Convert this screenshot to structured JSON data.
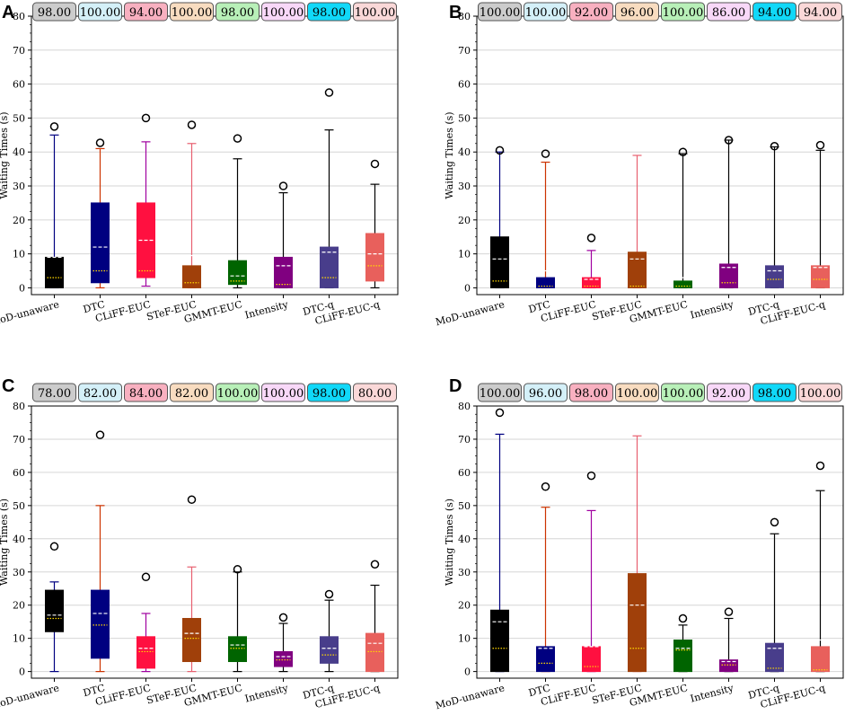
{
  "figure": {
    "panel_labels": [
      "A",
      "B",
      "C",
      "D"
    ],
    "y_axis_label": "Waiting Times (s)",
    "method_labels": [
      "MoD-unaware",
      "DTC",
      "CLiFF-EUC",
      "STeF-EUC",
      "GMMT-EUC",
      "Intensity",
      "DTC-q",
      "CLiFF-EUC-q"
    ],
    "method_colors": [
      "#000000",
      "#000080",
      "#ff1040",
      "#a0400a",
      "#006400",
      "#800080",
      "#483d8b",
      "#e8605c"
    ],
    "whisker_colors": [
      "#000080",
      "#cc3300",
      "#a000a0",
      "#e86070",
      "#000000",
      "#000000",
      "#000000",
      "#000000"
    ],
    "badge_colors": [
      "#cccccc",
      "#d4f0f8",
      "#f8b0c0",
      "#f8dcc0",
      "#b8f0b8",
      "#f8d8f8",
      "#10d8f8",
      "#fad8d8"
    ],
    "y_ticks": [
      0,
      10,
      20,
      30,
      40,
      50,
      60,
      70,
      80
    ]
  },
  "chart_data": [
    {
      "panel": "A",
      "type": "box",
      "title": "",
      "xlabel": "",
      "ylabel": "Waiting Times (s)",
      "ylim": [
        -2,
        80
      ],
      "categories": [
        "MoD-unaware",
        "DTC",
        "CLiFF-EUC",
        "STeF-EUC",
        "GMMT-EUC",
        "Intensity",
        "DTC-q",
        "CLiFF-EUC-q"
      ],
      "success_rates": [
        "98.00",
        "100.00",
        "94.00",
        "100.00",
        "98.00",
        "100.00",
        "98.00",
        "100.00"
      ],
      "boxes": [
        {
          "q1": 0,
          "q3": 9,
          "whisker_low": 0,
          "whisker_high": 45,
          "mean": 9,
          "median": 3,
          "outliers": [
            47.5
          ]
        },
        {
          "q1": 1.5,
          "q3": 25,
          "whisker_low": 0,
          "whisker_high": 41,
          "mean": 12,
          "median": 5,
          "outliers": [
            42.7
          ]
        },
        {
          "q1": 3,
          "q3": 25,
          "whisker_low": 0.5,
          "whisker_high": 43,
          "mean": 14,
          "median": 5,
          "outliers": [
            50
          ]
        },
        {
          "q1": 0,
          "q3": 6.5,
          "whisker_low": 0,
          "whisker_high": 42.5,
          "mean": 9.5,
          "median": 1.5,
          "outliers": [
            48
          ]
        },
        {
          "q1": 1,
          "q3": 8,
          "whisker_low": 0,
          "whisker_high": 38,
          "mean": 3.5,
          "median": 2,
          "outliers": [
            44
          ]
        },
        {
          "q1": 0,
          "q3": 9,
          "whisker_low": 0,
          "whisker_high": 28,
          "mean": 6.5,
          "median": 1,
          "outliers": [
            30
          ]
        },
        {
          "q1": 0,
          "q3": 12,
          "whisker_low": 0,
          "whisker_high": 46.5,
          "mean": 10.5,
          "median": 3,
          "outliers": [
            57.5
          ]
        },
        {
          "q1": 2,
          "q3": 16,
          "whisker_low": 0,
          "whisker_high": 30.5,
          "mean": 10,
          "median": 6.5,
          "outliers": [
            36.5
          ]
        }
      ]
    },
    {
      "panel": "B",
      "type": "box",
      "title": "",
      "xlabel": "",
      "ylabel": "Waiting Times (s)",
      "ylim": [
        -2,
        80
      ],
      "categories": [
        "MoD-unaware",
        "DTC",
        "CLiFF-EUC",
        "STeF-EUC",
        "GMMT-EUC",
        "Intensity",
        "DTC-q",
        "CLiFF-EUC-q"
      ],
      "success_rates": [
        "100.00",
        "100.00",
        "92.00",
        "96.00",
        "100.00",
        "86.00",
        "94.00",
        "94.00"
      ],
      "boxes": [
        {
          "q1": 0,
          "q3": 15,
          "whisker_low": 0,
          "whisker_high": 40,
          "mean": 8.5,
          "median": 2,
          "outliers": [
            40.5
          ]
        },
        {
          "q1": 0,
          "q3": 3,
          "whisker_low": 0,
          "whisker_high": 37,
          "mean": 5,
          "median": 0.5,
          "outliers": [
            39.5
          ]
        },
        {
          "q1": 0,
          "q3": 3,
          "whisker_low": 0,
          "whisker_high": 11,
          "mean": 2.5,
          "median": 0.5,
          "outliers": [
            14.7
          ]
        },
        {
          "q1": 0,
          "q3": 10.5,
          "whisker_low": 0,
          "whisker_high": 39,
          "mean": 8.5,
          "median": 0.5,
          "outliers": []
        },
        {
          "q1": 0,
          "q3": 2,
          "whisker_low": 0,
          "whisker_high": 39.5,
          "mean": 3,
          "median": 0.5,
          "outliers": [
            40
          ]
        },
        {
          "q1": 0,
          "q3": 7,
          "whisker_low": 0,
          "whisker_high": 43.5,
          "mean": 6,
          "median": 1.5,
          "outliers": [
            43.5
          ]
        },
        {
          "q1": 0,
          "q3": 6.5,
          "whisker_low": 0,
          "whisker_high": 41.5,
          "mean": 5,
          "median": 2.5,
          "outliers": [
            41.7
          ]
        },
        {
          "q1": 0,
          "q3": 6.5,
          "whisker_low": 0,
          "whisker_high": 40.5,
          "mean": 6,
          "median": 2.5,
          "outliers": [
            42
          ]
        }
      ]
    },
    {
      "panel": "C",
      "type": "box",
      "title": "",
      "xlabel": "",
      "ylabel": "Waiting Times (s)",
      "ylim": [
        -2,
        80
      ],
      "categories": [
        "MoD-unaware",
        "DTC",
        "CLiFF-EUC",
        "STeF-EUC",
        "GMMT-EUC",
        "Intensity",
        "DTC-q",
        "CLiFF-EUC-q"
      ],
      "success_rates": [
        "78.00",
        "82.00",
        "84.00",
        "82.00",
        "100.00",
        "100.00",
        "98.00",
        "80.00"
      ],
      "boxes": [
        {
          "q1": 12,
          "q3": 24.5,
          "whisker_low": 0,
          "whisker_high": 27,
          "mean": 17,
          "median": 16,
          "outliers": [
            37.7
          ]
        },
        {
          "q1": 4,
          "q3": 24.5,
          "whisker_low": 0,
          "whisker_high": 50,
          "mean": 17.5,
          "median": 14,
          "outliers": [
            71.3
          ]
        },
        {
          "q1": 1,
          "q3": 10.5,
          "whisker_low": 0,
          "whisker_high": 17.5,
          "mean": 7,
          "median": 6,
          "outliers": [
            28.5
          ]
        },
        {
          "q1": 3,
          "q3": 16,
          "whisker_low": 0,
          "whisker_high": 31.5,
          "mean": 11.5,
          "median": 10,
          "outliers": [
            51.8
          ]
        },
        {
          "q1": 3,
          "q3": 10.5,
          "whisker_low": 0,
          "whisker_high": 30,
          "mean": 8,
          "median": 7,
          "outliers": [
            30.8
          ]
        },
        {
          "q1": 1.5,
          "q3": 6,
          "whisker_low": 0,
          "whisker_high": 14.5,
          "mean": 4.5,
          "median": 3.5,
          "outliers": [
            16.3
          ]
        },
        {
          "q1": 2.5,
          "q3": 10.5,
          "whisker_low": 0,
          "whisker_high": 21.5,
          "mean": 7,
          "median": 5,
          "outliers": [
            23.3
          ]
        },
        {
          "q1": 0,
          "q3": 11.5,
          "whisker_low": 0,
          "whisker_high": 26,
          "mean": 8.5,
          "median": 6,
          "outliers": [
            32.3
          ]
        }
      ]
    },
    {
      "panel": "D",
      "type": "box",
      "title": "",
      "xlabel": "",
      "ylabel": "Waiting Times (s)",
      "ylim": [
        -2,
        80
      ],
      "categories": [
        "MoD-unaware",
        "DTC",
        "CLiFF-EUC",
        "STeF-EUC",
        "GMMT-EUC",
        "Intensity",
        "DTC-q",
        "CLiFF-EUC-q"
      ],
      "success_rates": [
        "100.00",
        "96.00",
        "98.00",
        "100.00",
        "100.00",
        "92.00",
        "98.00",
        "100.00"
      ],
      "boxes": [
        {
          "q1": 0,
          "q3": 18.5,
          "whisker_low": 0,
          "whisker_high": 71.5,
          "mean": 15,
          "median": 7,
          "outliers": [
            78
          ]
        },
        {
          "q1": 0,
          "q3": 7.5,
          "whisker_low": 0,
          "whisker_high": 49.5,
          "mean": 7,
          "median": 2.5,
          "outliers": [
            55.7
          ]
        },
        {
          "q1": 0,
          "q3": 7.5,
          "whisker_low": 0,
          "whisker_high": 48.5,
          "mean": 7.5,
          "median": 1.5,
          "outliers": [
            59
          ]
        },
        {
          "q1": 0,
          "q3": 29.5,
          "whisker_low": 0,
          "whisker_high": 71,
          "mean": 20,
          "median": 7,
          "outliers": []
        },
        {
          "q1": 0,
          "q3": 9.5,
          "whisker_low": 0,
          "whisker_high": 14,
          "mean": 7,
          "median": 6.5,
          "outliers": [
            16
          ]
        },
        {
          "q1": 0,
          "q3": 3.5,
          "whisker_low": 0,
          "whisker_high": 16,
          "mean": 3,
          "median": 2,
          "outliers": [
            18
          ]
        },
        {
          "q1": 0,
          "q3": 8.5,
          "whisker_low": 0,
          "whisker_high": 41.5,
          "mean": 7,
          "median": 1,
          "outliers": [
            45
          ]
        },
        {
          "q1": 0,
          "q3": 7.5,
          "whisker_low": 0,
          "whisker_high": 54.5,
          "mean": 9.5,
          "median": 0.5,
          "outliers": [
            62
          ]
        }
      ]
    }
  ]
}
